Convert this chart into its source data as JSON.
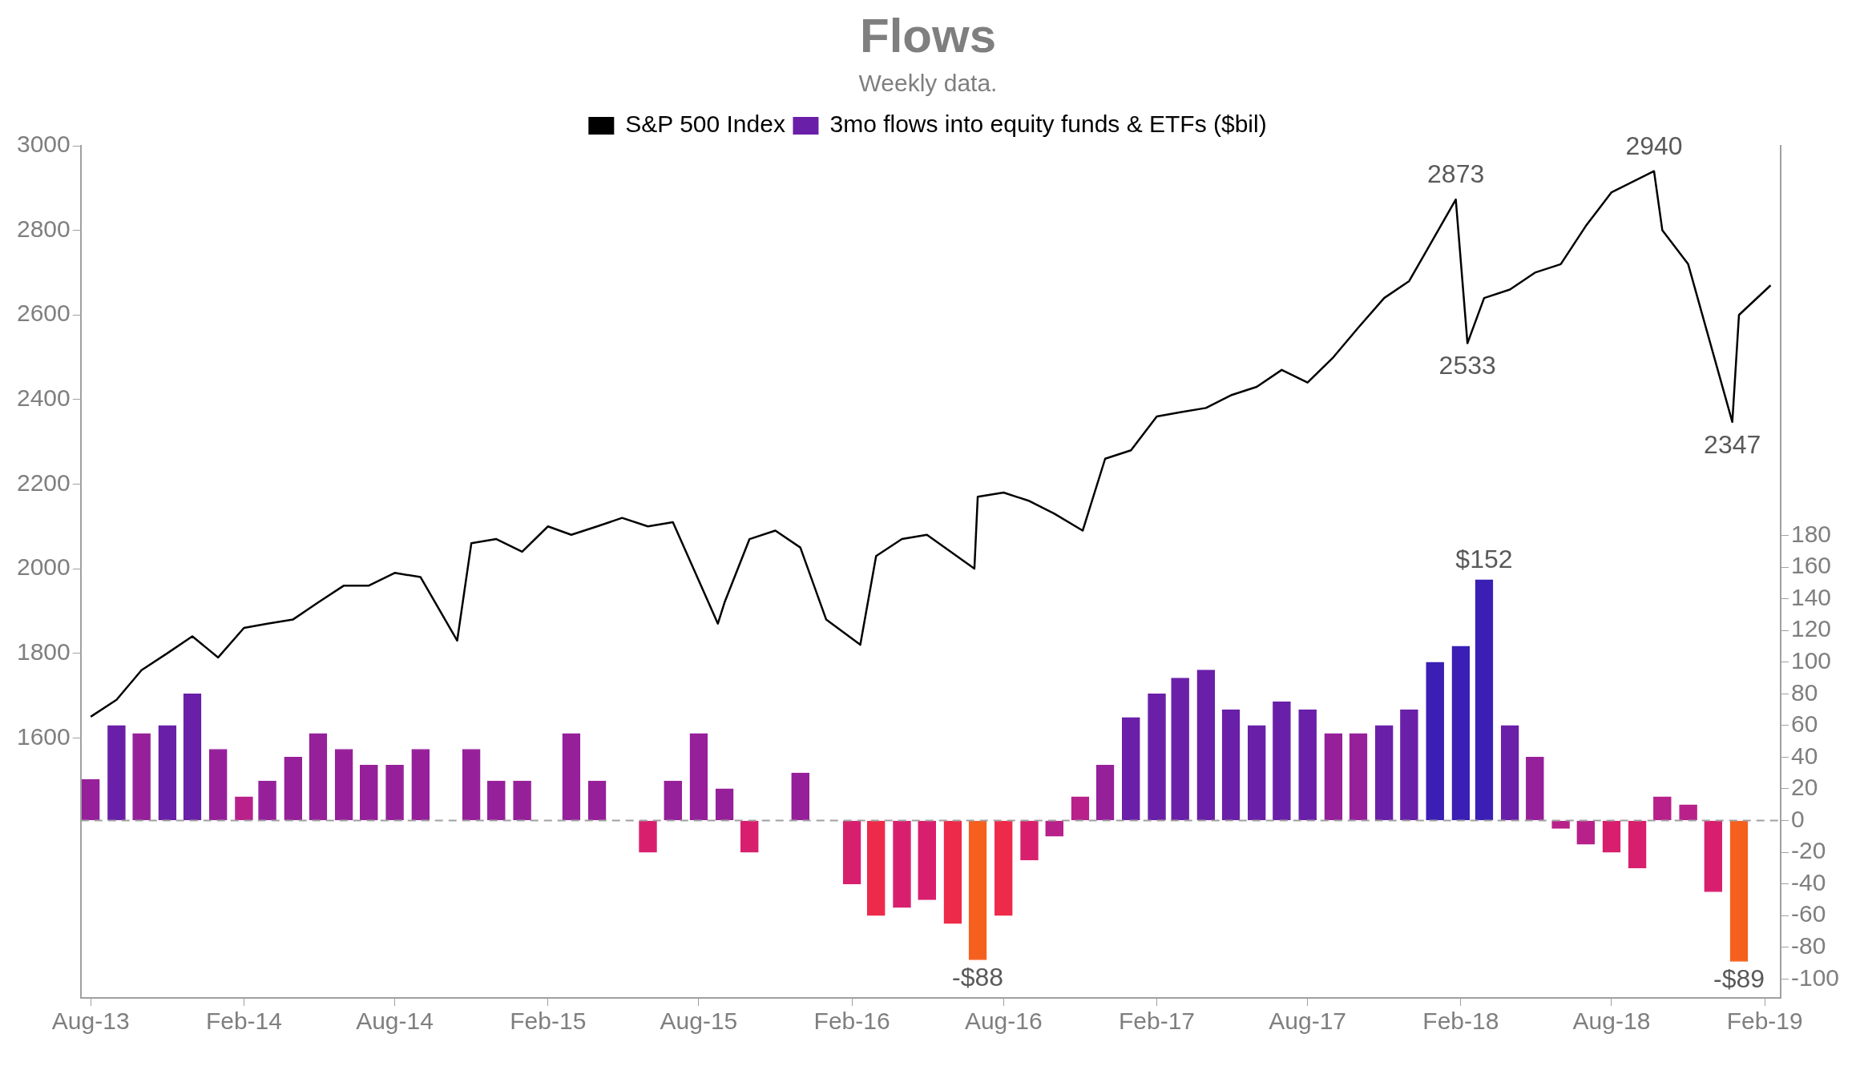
{
  "chart_data": {
    "type": "bar",
    "title": "Flows",
    "subtitle": "Weekly data.",
    "xlim": [
      "2013-07-20",
      "2019-02-20"
    ],
    "xticks": [
      {
        "value": "2013-08",
        "label": "Aug-13"
      },
      {
        "value": "2014-02",
        "label": "Feb-14"
      },
      {
        "value": "2014-08",
        "label": "Aug-14"
      },
      {
        "value": "2015-02",
        "label": "Feb-15"
      },
      {
        "value": "2015-08",
        "label": "Aug-15"
      },
      {
        "value": "2016-02",
        "label": "Feb-16"
      },
      {
        "value": "2016-08",
        "label": "Aug-16"
      },
      {
        "value": "2017-02",
        "label": "Feb-17"
      },
      {
        "value": "2017-08",
        "label": "Aug-17"
      },
      {
        "value": "2018-02",
        "label": "Feb-18"
      },
      {
        "value": "2018-08",
        "label": "Aug-18"
      },
      {
        "value": "2019-02",
        "label": "Feb-19"
      }
    ],
    "ylim": [
      985,
      3000
    ],
    "yticks": [
      1600,
      1800,
      2000,
      2200,
      2400,
      2600,
      2800,
      3000
    ],
    "y2lim": [
      -112,
      426
    ],
    "y2ticks": [
      -100,
      -80,
      -60,
      -40,
      -20,
      0,
      20,
      40,
      60,
      80,
      100,
      120,
      140,
      160,
      180
    ],
    "grid": false,
    "legend": "top",
    "marker": "none",
    "line_style": "solid",
    "series": [
      {
        "name": "S&P 500 Index",
        "type": "line",
        "color": "#000000",
        "x": [
          "2013-08",
          "2013-09",
          "2013-10",
          "2013-11",
          "2013-12",
          "2014-01",
          "2014-02",
          "2014-03",
          "2014-04",
          "2014-05",
          "2014-06",
          "2014-07",
          "2014-08",
          "2014-09",
          "2014-10-15",
          "2014-11",
          "2014-12",
          "2015-01",
          "2015-02",
          "2015-03",
          "2015-04",
          "2015-05",
          "2015-06",
          "2015-07",
          "2015-08-24",
          "2015-09",
          "2015-10",
          "2015-11",
          "2015-12",
          "2016-01",
          "2016-02-11",
          "2016-03",
          "2016-04",
          "2016-05",
          "2016-06-27",
          "2016-07",
          "2016-08",
          "2016-09",
          "2016-10",
          "2016-11-04",
          "2016-12",
          "2017-01",
          "2017-02",
          "2017-03",
          "2017-04",
          "2017-05",
          "2017-06",
          "2017-07",
          "2017-08",
          "2017-09",
          "2017-10",
          "2017-11",
          "2017-12",
          "2018-01-26",
          "2018-02-09",
          "2018-03",
          "2018-04",
          "2018-05",
          "2018-06",
          "2018-07",
          "2018-08",
          "2018-09-21",
          "2018-10",
          "2018-11",
          "2018-12-24",
          "2019-01",
          "2019-02-08"
        ],
        "values": [
          1650,
          1690,
          1760,
          1800,
          1840,
          1790,
          1860,
          1870,
          1880,
          1920,
          1960,
          1960,
          1990,
          1980,
          1830,
          2060,
          2070,
          2040,
          2100,
          2080,
          2100,
          2120,
          2100,
          2110,
          1870,
          1920,
          2070,
          2090,
          2050,
          1880,
          1820,
          2030,
          2070,
          2080,
          2000,
          2170,
          2180,
          2160,
          2130,
          2090,
          2260,
          2280,
          2360,
          2370,
          2380,
          2410,
          2430,
          2470,
          2440,
          2500,
          2570,
          2640,
          2680,
          2873,
          2533,
          2640,
          2660,
          2700,
          2720,
          2810,
          2890,
          2940,
          2800,
          2720,
          2347,
          2600,
          2670
        ]
      },
      {
        "name": "3mo flows into equity funds & ETFs ($bil)",
        "axis": "y2",
        "color": "#6a1fa8",
        "x": [
          "2013-08",
          "2013-09",
          "2013-10",
          "2013-11",
          "2013-12",
          "2014-01",
          "2014-02",
          "2014-03",
          "2014-04",
          "2014-05",
          "2014-06",
          "2014-07",
          "2014-08",
          "2014-09",
          "2014-10",
          "2014-11",
          "2014-12",
          "2015-01",
          "2015-02",
          "2015-03",
          "2015-04",
          "2015-05",
          "2015-06",
          "2015-07",
          "2015-08",
          "2015-09",
          "2015-10",
          "2015-11",
          "2015-12",
          "2016-01",
          "2016-02",
          "2016-03",
          "2016-04",
          "2016-05",
          "2016-06",
          "2016-07",
          "2016-08",
          "2016-09",
          "2016-10",
          "2016-11",
          "2016-12",
          "2017-01",
          "2017-02",
          "2017-03",
          "2017-04",
          "2017-05",
          "2017-06",
          "2017-07",
          "2017-08",
          "2017-09",
          "2017-10",
          "2017-11",
          "2017-12",
          "2018-01",
          "2018-02",
          "2018-03",
          "2018-04",
          "2018-05",
          "2018-06",
          "2018-07",
          "2018-08",
          "2018-09",
          "2018-10",
          "2018-11",
          "2018-12",
          "2019-01"
        ],
        "values": [
          26,
          60,
          55,
          60,
          80,
          45,
          15,
          25,
          40,
          55,
          45,
          35,
          35,
          45,
          0,
          45,
          25,
          25,
          0,
          55,
          25,
          0,
          -20,
          25,
          55,
          20,
          -20,
          0,
          30,
          0,
          -40,
          -60,
          -55,
          -50,
          -65,
          -88,
          -60,
          -25,
          -10,
          15,
          35,
          65,
          80,
          90,
          95,
          70,
          60,
          75,
          70,
          55,
          55,
          60,
          70,
          100,
          110,
          152,
          60,
          40,
          -5,
          -15,
          -20,
          -30,
          15,
          10,
          -45,
          -89
        ],
        "value_labels": [
          null,
          null,
          null,
          null,
          null,
          null,
          null,
          null,
          null,
          null,
          null,
          null,
          null,
          null,
          null,
          null,
          null,
          null,
          null,
          null,
          null,
          null,
          null,
          null,
          null,
          null,
          null,
          null,
          null,
          null,
          null,
          null,
          null,
          null,
          null,
          "-$88",
          null,
          null,
          null,
          null,
          null,
          null,
          null,
          null,
          null,
          null,
          null,
          null,
          null,
          null,
          null,
          null,
          null,
          null,
          null,
          "$152",
          null,
          null,
          null,
          null,
          null,
          null,
          null,
          null,
          null,
          "-$89"
        ],
        "colors": [
          "#96209a",
          "#6a1fa8",
          "#96209a",
          "#6a1fa8",
          "#6a1fa8",
          "#96209a",
          "#b8208a",
          "#96209a",
          "#96209a",
          "#96209a",
          "#96209a",
          "#96209a",
          "#96209a",
          "#96209a",
          "#b8208a",
          "#96209a",
          "#96209a",
          "#96209a",
          "#b8208a",
          "#96209a",
          "#96209a",
          "#b8208a",
          "#d81f6e",
          "#96209a",
          "#96209a",
          "#96209a",
          "#d81f6e",
          "#b8208a",
          "#96209a",
          "#b8208a",
          "#d81f6e",
          "#ee2a4a",
          "#d81f6e",
          "#d81f6e",
          "#ee2a4a",
          "#f5601e",
          "#ee2a4a",
          "#d81f6e",
          "#b8208a",
          "#b8208a",
          "#96209a",
          "#6a1fa8",
          "#6a1fa8",
          "#6a1fa8",
          "#6a1fa8",
          "#6a1fa8",
          "#6a1fa8",
          "#6a1fa8",
          "#6a1fa8",
          "#96209a",
          "#96209a",
          "#6a1fa8",
          "#6a1fa8",
          "#3b1fb5",
          "#3b1fb5",
          "#3b1fb5",
          "#6a1fa8",
          "#96209a",
          "#b8208a",
          "#b8208a",
          "#d81f6e",
          "#d81f6e",
          "#b8208a",
          "#b8208a",
          "#d81f6e",
          "#f5601e"
        ]
      }
    ],
    "ref_lines": [
      {
        "axis": "y2",
        "value": 0,
        "color": "#a0a0a0",
        "line_style": "dashed"
      }
    ],
    "annotations": [
      {
        "text": "2873",
        "x": "2018-01-26",
        "y": 2873
      },
      {
        "text": "2533",
        "x": "2018-02-09",
        "y": 2533
      },
      {
        "text": "2940",
        "x": "2018-09-21",
        "y": 2940
      },
      {
        "text": "2347",
        "x": "2018-12-24",
        "y": 2347
      }
    ]
  }
}
